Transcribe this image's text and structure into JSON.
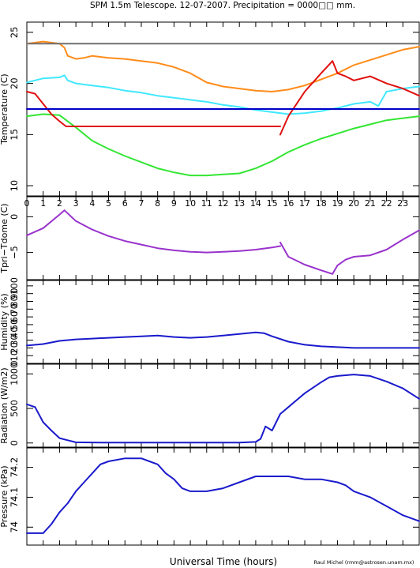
{
  "title": "SPM 1.5m Telescope. 12-07-2007. Precipitation = 0000□□ mm.",
  "xlabel": "Universal Time (hours)",
  "credit": "Raul Michel (rmm@astrosen.unam.mx)",
  "colors": {
    "orange": "#ff8c1a",
    "cyan": "#40e8ff",
    "green": "#33e633",
    "red": "#e01010",
    "navy": "#0000c8",
    "gray": "#707070",
    "purple": "#9933cc",
    "blue": "#1a1acc"
  },
  "chart_data": [
    {
      "type": "line",
      "ylabel": "Temperature (C)",
      "xlim": [
        0,
        24
      ],
      "ylim": [
        9,
        26
      ],
      "xticks": [
        "0",
        "1",
        "2",
        "3",
        "4",
        "5",
        "6",
        "7",
        "8",
        "9",
        "10",
        "11",
        "12",
        "13",
        "14",
        "15",
        "16",
        "17",
        "18",
        "19",
        "20",
        "21",
        "22",
        "23"
      ],
      "yticks": [
        "10",
        "15",
        "20",
        "25"
      ],
      "series": [
        {
          "color": "orange",
          "x": [
            0,
            1,
            2,
            2.3,
            2.5,
            3,
            3.5,
            4,
            5,
            6,
            7,
            8,
            9,
            10,
            11,
            12,
            13,
            14,
            15,
            16,
            17,
            18,
            19,
            20,
            21,
            22,
            23,
            24
          ],
          "y": [
            23.9,
            24.1,
            23.9,
            23.5,
            22.7,
            22.4,
            22.5,
            22.7,
            22.5,
            22.4,
            22.2,
            22.0,
            21.6,
            21.0,
            20.1,
            19.7,
            19.5,
            19.3,
            19.2,
            19.4,
            19.8,
            20.4,
            21.0,
            21.8,
            22.3,
            22.8,
            23.3,
            23.6
          ]
        },
        {
          "color": "cyan",
          "x": [
            0,
            1,
            2,
            2.3,
            2.5,
            3,
            4,
            5,
            6,
            7,
            8,
            9,
            10,
            11,
            12,
            13,
            14,
            15,
            16,
            17,
            18,
            19,
            20,
            21,
            21.5,
            22,
            23,
            24
          ],
          "y": [
            20.1,
            20.5,
            20.6,
            20.8,
            20.3,
            20.0,
            19.8,
            19.6,
            19.3,
            19.1,
            18.8,
            18.6,
            18.4,
            18.2,
            17.9,
            17.7,
            17.4,
            17.2,
            17.0,
            17.1,
            17.3,
            17.6,
            18.0,
            18.2,
            17.8,
            19.2,
            19.5,
            19.7
          ]
        },
        {
          "color": "green",
          "x": [
            0,
            1,
            2,
            3,
            4,
            5,
            6,
            7,
            8,
            9,
            10,
            11,
            12,
            13,
            14,
            15,
            16,
            17,
            18,
            19,
            20,
            21,
            22,
            23,
            24
          ],
          "y": [
            16.8,
            17.0,
            16.9,
            15.7,
            14.4,
            13.6,
            12.9,
            12.3,
            11.7,
            11.3,
            11.0,
            11.0,
            11.1,
            11.2,
            11.7,
            12.4,
            13.3,
            14.0,
            14.6,
            15.1,
            15.6,
            16.0,
            16.4,
            16.6,
            16.8
          ]
        },
        {
          "color": "red",
          "x": [
            0,
            0.5,
            1,
            1.5,
            2,
            2.4
          ],
          "y": [
            19.2,
            19.0,
            18.0,
            17.0,
            16.3,
            15.8
          ]
        },
        {
          "color": "red",
          "x": [
            2.4,
            15.5
          ],
          "y": [
            15.8,
            15.8
          ]
        },
        {
          "color": "red",
          "x": [
            15.5,
            16,
            17,
            18,
            18.7,
            19,
            19.5,
            20,
            21,
            22,
            23,
            24
          ],
          "y": [
            15.0,
            16.8,
            19.2,
            21.0,
            22.2,
            21.0,
            20.7,
            20.3,
            20.7,
            20.0,
            19.5,
            18.8
          ]
        },
        {
          "color": "navy",
          "x": [
            0,
            24
          ],
          "y": [
            17.5,
            17.5
          ]
        },
        {
          "color": "gray",
          "x": [
            0,
            24
          ],
          "y": [
            23.9,
            23.9
          ]
        }
      ]
    },
    {
      "type": "line",
      "ylabel": "Tpri−Tdome (C)",
      "xlim": [
        0,
        24
      ],
      "ylim": [
        -8.8,
        2.8
      ],
      "yticks": [
        "0",
        "−5"
      ],
      "series": [
        {
          "color": "purple",
          "x": [
            0,
            1,
            2,
            2.3,
            3,
            4,
            5,
            6,
            7,
            8,
            9,
            10,
            11,
            12,
            13,
            14,
            15,
            15.5
          ],
          "y": [
            -2.6,
            -1.6,
            0.3,
            0.9,
            -0.6,
            -1.8,
            -2.7,
            -3.4,
            -3.9,
            -4.4,
            -4.7,
            -4.9,
            -5.0,
            -4.9,
            -4.8,
            -4.6,
            -4.3,
            -4.1
          ]
        },
        {
          "color": "purple",
          "x": [
            15.5,
            16,
            17,
            18,
            18.7,
            19,
            19.5,
            20,
            21,
            22,
            23,
            24
          ],
          "y": [
            -3.6,
            -5.6,
            -6.7,
            -7.5,
            -8.0,
            -6.8,
            -6.0,
            -5.6,
            -5.4,
            -4.6,
            -3.2,
            -1.9
          ]
        }
      ]
    },
    {
      "type": "line",
      "ylabel": "Humidity (%)",
      "xlim": [
        0,
        24
      ],
      "ylim": [
        0,
        107
      ],
      "yticks": [
        "0",
        "10",
        "20",
        "30",
        "40",
        "50",
        "60",
        "70",
        "80",
        "90",
        "100"
      ],
      "series": [
        {
          "color": "blue",
          "x": [
            0,
            1,
            2,
            3,
            4,
            5,
            6,
            7,
            8,
            9,
            10,
            11,
            12,
            13,
            14,
            14.5,
            15,
            16,
            17,
            18,
            19,
            20,
            21,
            22,
            23,
            24
          ],
          "y": [
            23,
            25,
            29,
            31,
            32,
            33,
            34,
            35,
            36,
            34,
            33,
            34,
            36,
            38,
            40,
            39,
            35,
            28,
            24,
            22,
            21,
            20,
            20,
            20,
            20,
            20
          ]
        }
      ]
    },
    {
      "type": "line",
      "ylabel": "Radiation (W/m2)",
      "xlim": [
        0,
        24
      ],
      "ylim": [
        -60,
        1140
      ],
      "yticks": [
        "0",
        "500",
        "1000"
      ],
      "series": [
        {
          "color": "blue",
          "x": [
            0,
            0.5,
            1,
            1.5,
            2,
            2.5,
            3,
            5,
            8,
            11,
            13,
            14,
            14.3,
            14.6,
            15,
            15.5,
            16,
            17,
            18,
            18.5,
            19,
            20,
            21,
            22,
            23,
            24
          ],
          "y": [
            560,
            520,
            300,
            180,
            70,
            40,
            10,
            5,
            5,
            5,
            5,
            15,
            60,
            240,
            180,
            420,
            520,
            720,
            880,
            950,
            970,
            990,
            970,
            890,
            790,
            640
          ]
        }
      ]
    },
    {
      "type": "line",
      "ylabel": "Pressure (kPa)",
      "xlim": [
        0,
        24
      ],
      "ylim": [
        73.94,
        74.265
      ],
      "yticks": [
        "74",
        "74.1",
        "74.2"
      ],
      "series": [
        {
          "color": "blue",
          "x": [
            0,
            1,
            1.5,
            2,
            2.5,
            3,
            3.5,
            4,
            4.5,
            5,
            6,
            7,
            7.5,
            8,
            8.5,
            9,
            9.5,
            10,
            11,
            12,
            13,
            14,
            15,
            16,
            17,
            18,
            19,
            19.5,
            20,
            21,
            22,
            23,
            24
          ],
          "y": [
            73.98,
            73.98,
            74.01,
            74.05,
            74.08,
            74.12,
            74.15,
            74.18,
            74.21,
            74.22,
            74.23,
            74.23,
            74.22,
            74.21,
            74.18,
            74.16,
            74.13,
            74.12,
            74.12,
            74.13,
            74.15,
            74.17,
            74.17,
            74.17,
            74.16,
            74.16,
            74.15,
            74.14,
            74.12,
            74.1,
            74.07,
            74.04,
            74.02
          ]
        }
      ]
    }
  ]
}
